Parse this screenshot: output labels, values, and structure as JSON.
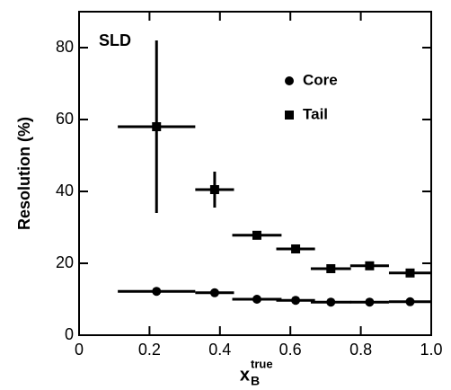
{
  "chart_data": {
    "type": "scatter",
    "annotation": "SLD",
    "ylabel": "Resolution  (%)",
    "xlabel": {
      "main": "x",
      "subscript": "B",
      "superscript": "true"
    },
    "x": [
      0.22,
      0.385,
      0.505,
      0.615,
      0.715,
      0.825,
      0.94
    ],
    "xerr": [
      0.11,
      0.055,
      0.07,
      0.055,
      0.057,
      0.055,
      0.06
    ],
    "series": [
      {
        "name": "Core",
        "marker": "circle",
        "color": "#000000",
        "values": [
          12.2,
          11.8,
          10.0,
          9.7,
          9.2,
          9.2,
          9.3
        ]
      },
      {
        "name": "Tail",
        "marker": "square",
        "color": "#000000",
        "values": [
          58,
          40.5,
          27.8,
          24.0,
          18.5,
          19.3,
          17.3
        ],
        "yerr": [
          24,
          5,
          1,
          0.7,
          0.7,
          0.7,
          0.7
        ]
      }
    ],
    "xlim": [
      0,
      1
    ],
    "ylim": [
      0,
      90
    ],
    "xticks": [
      0,
      0.2,
      0.4,
      0.6,
      0.8,
      {
        "value": 1,
        "label": "1.0"
      }
    ],
    "yticks": [
      0,
      20,
      40,
      60,
      80
    ],
    "legend": "upper right",
    "grid": false
  }
}
